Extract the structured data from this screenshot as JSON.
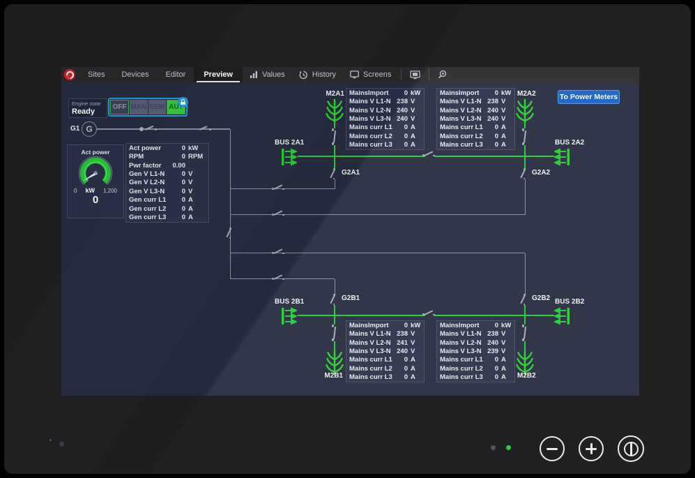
{
  "toolbar": {
    "tabs": [
      "Sites",
      "Devices",
      "Editor",
      "Preview"
    ],
    "active_tab": "Preview",
    "menu": [
      {
        "label": "Values",
        "icon": "bar-chart-icon"
      },
      {
        "label": "History",
        "icon": "history-icon"
      },
      {
        "label": "Screens",
        "icon": "monitor-icon"
      }
    ]
  },
  "header_button": {
    "label": "To Power Meters"
  },
  "engine": {
    "label": "Engine state",
    "state": "Ready"
  },
  "modes": {
    "items": [
      "OFF",
      "MAN",
      "SEM",
      "AUT"
    ],
    "active": "AUT",
    "locked": true
  },
  "generator": {
    "id": "G1",
    "symbol": "G"
  },
  "gauge": {
    "title": "Act power",
    "min": "0",
    "unit": "kW",
    "max": "1,200",
    "value": "0"
  },
  "gen_table": {
    "rows": [
      {
        "label": "Act power",
        "value": "0",
        "unit": "kW"
      },
      {
        "label": "RPM",
        "value": "0",
        "unit": "RPM"
      },
      {
        "label": "Pwr factor",
        "value": "0.00",
        "unit": ""
      },
      {
        "label": "Gen V L1-N",
        "value": "0",
        "unit": "V"
      },
      {
        "label": "Gen V L2-N",
        "value": "0",
        "unit": "V"
      },
      {
        "label": "Gen V L3-N",
        "value": "0",
        "unit": "V"
      },
      {
        "label": "Gen curr L1",
        "value": "0",
        "unit": "A"
      },
      {
        "label": "Gen curr L2",
        "value": "0",
        "unit": "A"
      },
      {
        "label": "Gen curr L3",
        "value": "0",
        "unit": "A"
      }
    ]
  },
  "mains": {
    "m2a1": {
      "meter": "M2A1",
      "bus": "BUS 2A1",
      "breaker": "G2A1",
      "rows": [
        {
          "label": "MainsImport",
          "value": "0",
          "unit": "kW"
        },
        {
          "label": "Mains V L1-N",
          "value": "238",
          "unit": "V"
        },
        {
          "label": "Mains V L2-N",
          "value": "240",
          "unit": "V"
        },
        {
          "label": "Mains V L3-N",
          "value": "240",
          "unit": "V"
        },
        {
          "label": "Mains curr L1",
          "value": "0",
          "unit": "A"
        },
        {
          "label": "Mains curr L2",
          "value": "0",
          "unit": "A"
        },
        {
          "label": "Mains curr L3",
          "value": "0",
          "unit": "A"
        }
      ]
    },
    "m2a2": {
      "meter": "M2A2",
      "bus": "BUS 2A2",
      "breaker": "G2A2",
      "rows": [
        {
          "label": "MainsImport",
          "value": "0",
          "unit": "kW"
        },
        {
          "label": "Mains V L1-N",
          "value": "238",
          "unit": "V"
        },
        {
          "label": "Mains V L2-N",
          "value": "240",
          "unit": "V"
        },
        {
          "label": "Mains V L3-N",
          "value": "240",
          "unit": "V"
        },
        {
          "label": "Mains curr L1",
          "value": "0",
          "unit": "A"
        },
        {
          "label": "Mains curr L2",
          "value": "0",
          "unit": "A"
        },
        {
          "label": "Mains curr L3",
          "value": "0",
          "unit": "A"
        }
      ]
    },
    "m2b1": {
      "meter": "M2B1",
      "bus": "BUS 2B1",
      "breaker": "G2B1",
      "rows": [
        {
          "label": "MainsImport",
          "value": "0",
          "unit": "kW"
        },
        {
          "label": "Mains V L1-N",
          "value": "238",
          "unit": "V"
        },
        {
          "label": "Mains V L2-N",
          "value": "241",
          "unit": "V"
        },
        {
          "label": "Mains V L3-N",
          "value": "240",
          "unit": "V"
        },
        {
          "label": "Mains curr L1",
          "value": "0",
          "unit": "A"
        },
        {
          "label": "Mains curr L2",
          "value": "0",
          "unit": "A"
        },
        {
          "label": "Mains curr L3",
          "value": "0",
          "unit": "A"
        }
      ]
    },
    "m2b2": {
      "meter": "M2B2",
      "bus": "BUS 2B2",
      "breaker": "G2B2",
      "rows": [
        {
          "label": "MainsImport",
          "value": "0",
          "unit": "kW"
        },
        {
          "label": "Mains V L1-N",
          "value": "238",
          "unit": "V"
        },
        {
          "label": "Mains V L2-N",
          "value": "240",
          "unit": "V"
        },
        {
          "label": "Mains V L3-N",
          "value": "239",
          "unit": "V"
        },
        {
          "label": "Mains curr L1",
          "value": "0",
          "unit": "A"
        },
        {
          "label": "Mains curr L2",
          "value": "0",
          "unit": "A"
        },
        {
          "label": "Mains curr L3",
          "value": "0",
          "unit": "A"
        }
      ]
    }
  },
  "colors": {
    "line_green": "#21cd32",
    "line_gray": "#8a8f9b",
    "accent_blue": "#1e9ad6",
    "aut_green": "#37c73e",
    "button_blue": "#1a5fc4",
    "logo_red": "#d21f26",
    "screen_bg": "#252b3e"
  }
}
